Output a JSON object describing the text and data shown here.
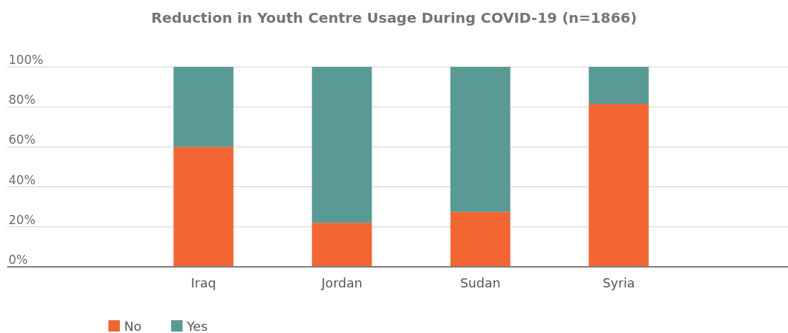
{
  "chart_data": {
    "type": "bar",
    "title": "Reduction in Youth Centre Usage During COVID-19 (n=1866)",
    "categories": [
      "Iraq",
      "Jordan",
      "Sudan",
      "Syria"
    ],
    "stacked": true,
    "series": [
      {
        "name": "No",
        "color": "#f26633",
        "values": [
          60,
          22,
          27.5,
          81.5
        ]
      },
      {
        "name": "Yes",
        "color": "#5a9a94",
        "values": [
          40,
          78,
          72.5,
          18.5
        ]
      }
    ],
    "ylim": [
      0,
      100
    ],
    "yticks": [
      {
        "value": 0,
        "label": "0%"
      },
      {
        "value": 20,
        "label": "20%"
      },
      {
        "value": 40,
        "label": "40%"
      },
      {
        "value": 60,
        "label": "60%"
      },
      {
        "value": 80,
        "label": "80%"
      },
      {
        "value": 100,
        "label": "100%"
      }
    ],
    "grid": "y",
    "legend": "bottom left"
  }
}
